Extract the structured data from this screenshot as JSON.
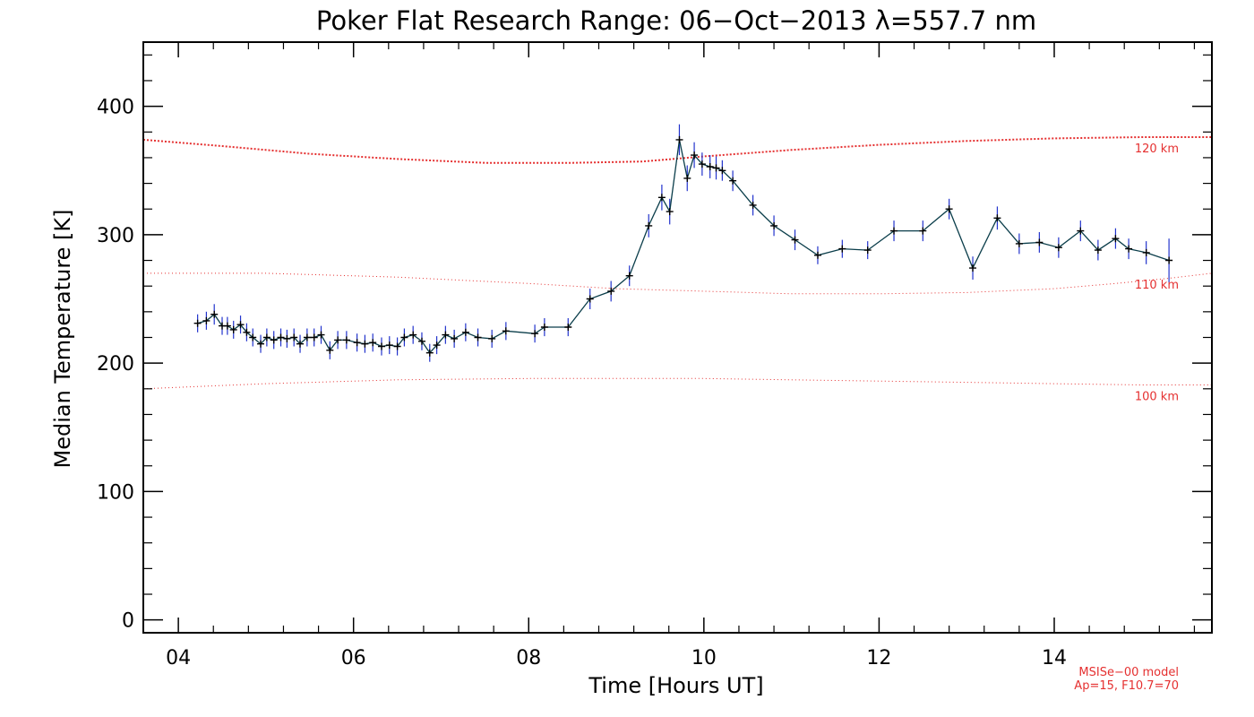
{
  "chart_data": {
    "type": "line",
    "title": "Poker Flat Research Range: 06−Oct−2013 λ=557.7 nm",
    "xlabel": "Time [Hours UT]",
    "ylabel": "Median Temperature [K]",
    "xlim": [
      3.6,
      15.8
    ],
    "ylim": [
      -10,
      450
    ],
    "x_ticks": [
      4,
      6,
      8,
      10,
      12,
      14
    ],
    "x_tick_labels": [
      "04",
      "06",
      "08",
      "10",
      "12",
      "14"
    ],
    "x_minor_step": 0.4,
    "y_ticks": [
      0,
      100,
      200,
      300,
      400
    ],
    "y_tick_labels": [
      "0",
      "100",
      "200",
      "300",
      "400"
    ],
    "y_minor_step": 20,
    "grid": false,
    "series": [
      {
        "color": "#0a3d4a",
        "error_color": "#2233cc",
        "x": [
          4.22,
          4.32,
          4.41,
          4.5,
          4.56,
          4.63,
          4.71,
          4.78,
          4.85,
          4.94,
          5.01,
          5.09,
          5.17,
          5.24,
          5.32,
          5.39,
          5.47,
          5.55,
          5.63,
          5.73,
          5.82,
          5.92,
          6.04,
          6.13,
          6.22,
          6.32,
          6.41,
          6.5,
          6.58,
          6.68,
          6.78,
          6.87,
          6.95,
          7.05,
          7.15,
          7.28,
          7.42,
          7.58,
          7.74,
          8.07,
          8.18,
          8.45,
          8.7,
          8.94,
          9.15,
          9.37,
          9.52,
          9.61,
          9.72,
          9.81,
          9.89,
          9.98,
          10.07,
          10.14,
          10.21,
          10.33,
          10.56,
          10.8,
          11.04,
          11.3,
          11.58,
          11.87,
          12.17,
          12.5,
          12.8,
          13.07,
          13.35,
          13.6,
          13.83,
          14.05,
          14.3,
          14.5,
          14.7,
          14.85,
          15.05,
          15.31
        ],
        "y": [
          231,
          233,
          238,
          229,
          229,
          226,
          230,
          224,
          220,
          215,
          220,
          218,
          220,
          219,
          220,
          215,
          220,
          220,
          222,
          210,
          218,
          218,
          216,
          215,
          216,
          213,
          214,
          213,
          220,
          222,
          217,
          208,
          214,
          222,
          219,
          224,
          220,
          219,
          225,
          223,
          228,
          228,
          250,
          256,
          268,
          307,
          329,
          318,
          374,
          344,
          362,
          355,
          353,
          352,
          350,
          342,
          323,
          307,
          296,
          284,
          289,
          288,
          303,
          303,
          320,
          274,
          313,
          293,
          294,
          290,
          303,
          288,
          297,
          289,
          286,
          280
        ],
        "err": [
          7,
          7,
          8,
          7,
          7,
          7,
          7,
          7,
          7,
          7,
          7,
          7,
          7,
          7,
          7,
          7,
          7,
          7,
          7,
          7,
          7,
          7,
          7,
          7,
          7,
          7,
          7,
          7,
          7,
          7,
          7,
          7,
          7,
          7,
          7,
          7,
          7,
          7,
          7,
          7,
          7,
          7,
          8,
          8,
          8,
          9,
          10,
          10,
          12,
          10,
          10,
          9,
          9,
          9,
          8,
          8,
          8,
          8,
          8,
          7,
          7,
          7,
          8,
          8,
          8,
          9,
          9,
          8,
          8,
          8,
          8,
          8,
          8,
          8,
          9,
          17
        ]
      }
    ],
    "model_curves": [
      {
        "label": "120 km",
        "color": "#e53030",
        "style": "dense-dotted",
        "x": [
          3.6,
          4.5,
          5.5,
          6.5,
          7.5,
          8.5,
          9.3,
          10.0,
          11.0,
          12.0,
          13.0,
          14.0,
          15.0,
          15.8
        ],
        "y": [
          374,
          369,
          363,
          359,
          356,
          356,
          357,
          361,
          366,
          370,
          373,
          375,
          376,
          376
        ]
      },
      {
        "label": "110 km",
        "color": "#e53030",
        "style": "sparse-dotted",
        "x": [
          3.6,
          5.0,
          6.5,
          8.0,
          9.0,
          10.0,
          11.0,
          12.0,
          13.0,
          14.0,
          14.7,
          15.3,
          15.8
        ],
        "y": [
          270,
          270,
          267,
          262,
          258,
          256,
          254,
          254,
          255,
          258,
          262,
          266,
          270
        ]
      },
      {
        "label": "100 km",
        "color": "#e53030",
        "style": "sparse-dotted",
        "x": [
          3.6,
          5.0,
          6.5,
          8.0,
          9.0,
          10.0,
          11.0,
          12.0,
          13.0,
          14.0,
          15.0,
          15.8
        ],
        "y": [
          180,
          184,
          187,
          188,
          188,
          188,
          187,
          186,
          185,
          184,
          183,
          183
        ]
      }
    ],
    "notes": {
      "model": "MSISe−00 model",
      "params": "Ap=15, F10.7=70",
      "color": "#e53030"
    }
  }
}
